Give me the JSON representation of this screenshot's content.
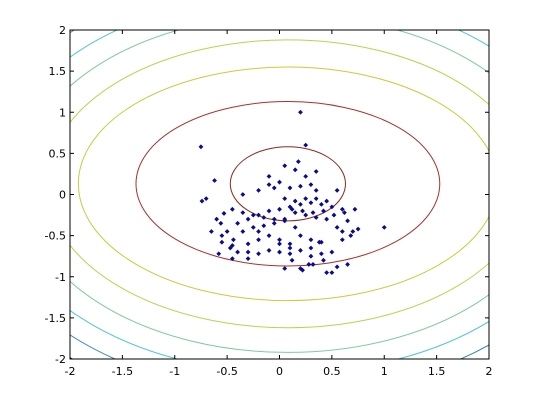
{
  "chart_data": {
    "type": "scatter",
    "title": "",
    "xlabel": "",
    "ylabel": "",
    "xlim": [
      -2,
      2
    ],
    "ylim": [
      -2,
      2
    ],
    "grid": false,
    "xticks": [
      "-2",
      "-1.5",
      "-1",
      "-0.5",
      "0",
      "0.5",
      "1",
      "1.5",
      "2"
    ],
    "yticks": [
      "2",
      "1.5",
      "1",
      "0.5",
      "0",
      "-0.5",
      "-1",
      "-1.5",
      "-2"
    ],
    "contour_center": [
      0.08,
      0.13
    ],
    "contours": [
      {
        "rx": 0.55,
        "ry": 0.45,
        "color": "#8b2a1e"
      },
      {
        "rx": 1.45,
        "ry": 1.0,
        "color": "#a8322a"
      },
      {
        "rx": 2.0,
        "ry": 1.42,
        "color": "#c8cc3a"
      },
      {
        "rx": 2.3,
        "ry": 1.75,
        "color": "#b8d44a"
      },
      {
        "rx": 2.55,
        "ry": 2.05,
        "color": "#7ccc9c"
      },
      {
        "rx": 2.8,
        "ry": 2.3,
        "color": "#4fc8d0"
      },
      {
        "rx": 3.0,
        "ry": 2.55,
        "color": "#3a8abf"
      },
      {
        "rx": 3.2,
        "ry": 2.78,
        "color": "#1e2f7a"
      }
    ],
    "series": [
      {
        "marker_color": "#0b0b8f",
        "x": [
          0.2,
          0.25,
          0.18,
          -0.75,
          -0.62,
          -0.74,
          -0.53,
          -0.56,
          -0.5,
          -0.55,
          -0.47,
          -0.4,
          -0.44,
          -0.6,
          -0.35,
          -0.25,
          -0.15,
          -0.05,
          0.05,
          0.15,
          -0.3,
          -0.2,
          -0.1,
          0.0,
          0.1,
          0.2,
          0.3,
          0.4,
          -0.45,
          -0.35,
          -0.25,
          -0.15,
          -0.05,
          0.05,
          0.15,
          0.25,
          0.35,
          0.45,
          0.55,
          0.65,
          -0.55,
          -0.45,
          -0.3,
          -0.2,
          -0.1,
          0.0,
          0.1,
          0.2,
          0.3,
          0.4,
          0.5,
          -0.4,
          -0.3,
          -0.2,
          -0.1,
          0.0,
          0.1,
          0.2,
          0.3,
          0.4,
          0.5,
          0.6,
          -0.35,
          -0.2,
          -0.05,
          0.05,
          0.15,
          0.25,
          0.35,
          0.45,
          0.55,
          -0.1,
          0.0,
          0.1,
          0.2,
          0.3,
          0.05,
          0.15,
          0.25,
          0.35,
          0.12,
          0.22,
          0.32,
          0.42,
          0.52,
          0.62,
          0.72,
          0.0,
          0.1,
          0.3,
          0.38,
          0.2,
          0.28,
          0.42,
          -0.1,
          -0.2,
          0.6,
          0.7,
          0.55,
          0.65,
          0.5,
          0.45,
          1.0,
          0.75,
          0.68,
          0.6,
          -0.7,
          -0.65,
          0.05,
          0.22,
          0.32,
          0.12,
          -0.3,
          -0.45,
          -0.58,
          0.35
        ],
        "y": [
          1.0,
          0.6,
          0.4,
          0.58,
          0.17,
          -0.08,
          -0.23,
          -0.35,
          -0.45,
          -0.58,
          -0.65,
          -0.7,
          -0.55,
          -0.3,
          -0.45,
          -0.4,
          -0.38,
          -0.35,
          -0.3,
          -0.4,
          -0.6,
          -0.55,
          -0.5,
          -0.55,
          -0.6,
          -0.5,
          -0.55,
          -0.58,
          -0.18,
          -0.22,
          -0.25,
          -0.28,
          -0.3,
          -0.32,
          -0.22,
          -0.25,
          -0.28,
          -0.3,
          -0.4,
          -0.32,
          -0.5,
          -0.62,
          -0.7,
          -0.72,
          -0.68,
          -0.7,
          -0.72,
          -0.68,
          -0.75,
          -0.72,
          -0.7,
          -0.35,
          -0.3,
          -0.25,
          -0.2,
          -0.18,
          -0.15,
          -0.12,
          -0.1,
          -0.12,
          -0.15,
          -0.18,
          0.0,
          0.05,
          0.08,
          -0.05,
          -0.08,
          -0.05,
          0.05,
          -0.08,
          0.05,
          0.12,
          0.15,
          0.08,
          0.1,
          0.12,
          0.35,
          0.3,
          0.22,
          0.28,
          -0.18,
          -0.2,
          -0.22,
          -0.2,
          -0.25,
          -0.22,
          -0.18,
          -0.6,
          -0.65,
          -0.65,
          -0.58,
          -0.9,
          -0.85,
          -0.8,
          0.22,
          -0.45,
          -0.45,
          -0.45,
          -0.88,
          -0.85,
          -0.95,
          -0.95,
          -0.4,
          -0.42,
          -0.5,
          -0.55,
          -0.05,
          -0.45,
          -0.9,
          -0.92,
          -0.85,
          -0.8,
          -0.78,
          -0.78,
          -0.72,
          -0.05
        ]
      }
    ]
  }
}
